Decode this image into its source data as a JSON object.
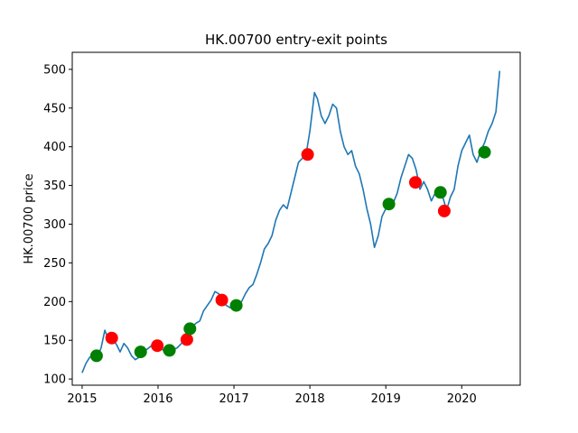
{
  "chart_data": {
    "type": "line",
    "title": "HK.00700 entry-exit points",
    "xlabel": "",
    "ylabel": "HK.00700 price",
    "xlim": [
      2014.87,
      2020.77
    ],
    "ylim": [
      92,
      522
    ],
    "x_ticks": [
      2015,
      2016,
      2017,
      2018,
      2019,
      2020
    ],
    "x_tick_labels": [
      "2015",
      "2016",
      "2017",
      "2018",
      "2019",
      "2020"
    ],
    "y_ticks": [
      100,
      150,
      200,
      250,
      300,
      350,
      400,
      450,
      500
    ],
    "y_tick_labels": [
      "100",
      "150",
      "200",
      "250",
      "300",
      "350",
      "400",
      "450",
      "500"
    ],
    "grid": false,
    "colors": {
      "price": "#1f77b4",
      "entry": "#008000",
      "exit": "#ff0000"
    },
    "series": [
      {
        "type": "line",
        "x": [
          2015.0,
          2015.05,
          2015.1,
          2015.15,
          2015.2,
          2015.25,
          2015.3,
          2015.33,
          2015.36,
          2015.4,
          2015.45,
          2015.5,
          2015.55,
          2015.6,
          2015.65,
          2015.7,
          2015.75,
          2015.8,
          2015.85,
          2015.9,
          2015.95,
          2016.0,
          2016.05,
          2016.1,
          2016.15,
          2016.2,
          2016.25,
          2016.3,
          2016.35,
          2016.4,
          2016.45,
          2016.5,
          2016.55,
          2016.6,
          2016.65,
          2016.7,
          2016.75,
          2016.8,
          2016.85,
          2016.9,
          2016.95,
          2017.0,
          2017.05,
          2017.1,
          2017.15,
          2017.2,
          2017.25,
          2017.3,
          2017.35,
          2017.4,
          2017.45,
          2017.5,
          2017.55,
          2017.6,
          2017.65,
          2017.7,
          2017.75,
          2017.8,
          2017.85,
          2017.9,
          2017.95,
          2018.0,
          2018.03,
          2018.06,
          2018.1,
          2018.15,
          2018.2,
          2018.25,
          2018.3,
          2018.35,
          2018.4,
          2018.45,
          2018.5,
          2018.55,
          2018.6,
          2018.65,
          2018.7,
          2018.75,
          2018.8,
          2018.85,
          2018.9,
          2018.95,
          2019.0,
          2019.05,
          2019.1,
          2019.15,
          2019.2,
          2019.25,
          2019.3,
          2019.35,
          2019.4,
          2019.45,
          2019.5,
          2019.55,
          2019.6,
          2019.65,
          2019.7,
          2019.75,
          2019.8,
          2019.85,
          2019.9,
          2019.95,
          2020.0,
          2020.05,
          2020.1,
          2020.15,
          2020.2,
          2020.25,
          2020.3,
          2020.35,
          2020.4,
          2020.45,
          2020.5
        ],
        "y": [
          108,
          120,
          128,
          132,
          129,
          140,
          163,
          155,
          152,
          150,
          145,
          135,
          146,
          140,
          130,
          125,
          128,
          133,
          138,
          142,
          145,
          147,
          140,
          132,
          135,
          138,
          140,
          145,
          150,
          160,
          167,
          172,
          175,
          188,
          195,
          202,
          213,
          210,
          200,
          195,
          192,
          193,
          195,
          200,
          210,
          218,
          222,
          235,
          250,
          268,
          275,
          285,
          305,
          318,
          325,
          320,
          340,
          360,
          380,
          385,
          390,
          420,
          445,
          470,
          462,
          440,
          430,
          440,
          455,
          450,
          420,
          400,
          390,
          395,
          375,
          365,
          345,
          320,
          300,
          270,
          285,
          310,
          320,
          330,
          328,
          340,
          360,
          375,
          390,
          385,
          370,
          345,
          355,
          345,
          330,
          340,
          345,
          335,
          318,
          335,
          345,
          375,
          395,
          405,
          415,
          390,
          380,
          395,
          405,
          420,
          430,
          445,
          498
        ]
      }
    ],
    "entry_points": [
      {
        "x": 2015.19,
        "y": 130
      },
      {
        "x": 2015.77,
        "y": 135
      },
      {
        "x": 2016.15,
        "y": 137
      },
      {
        "x": 2016.42,
        "y": 165
      },
      {
        "x": 2017.03,
        "y": 195
      },
      {
        "x": 2019.04,
        "y": 326
      },
      {
        "x": 2019.72,
        "y": 341
      },
      {
        "x": 2020.3,
        "y": 393
      }
    ],
    "exit_points": [
      {
        "x": 2015.39,
        "y": 153
      },
      {
        "x": 2015.99,
        "y": 143
      },
      {
        "x": 2016.38,
        "y": 151
      },
      {
        "x": 2016.84,
        "y": 202
      },
      {
        "x": 2017.97,
        "y": 390
      },
      {
        "x": 2019.39,
        "y": 354
      },
      {
        "x": 2019.77,
        "y": 317
      }
    ]
  }
}
